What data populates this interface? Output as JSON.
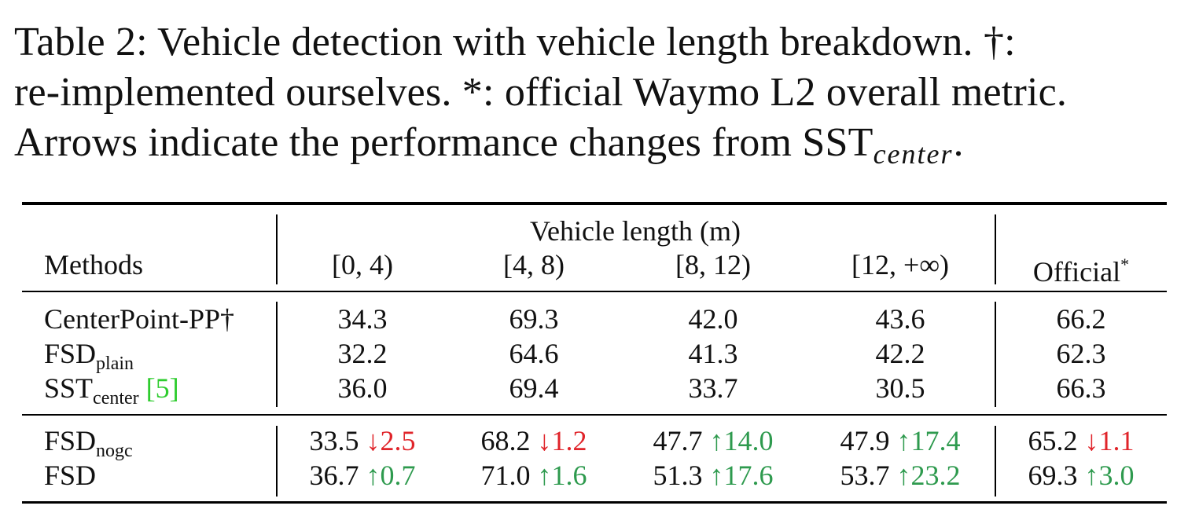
{
  "caption": {
    "line1": "Table 2:  Vehicle detection with vehicle length breakdown.  †:",
    "line2": "re-implemented ourselves. *: official Waymo L2 overall metric.",
    "line3_text": "Arrows indicate the performance changes from SST",
    "line3_sub": "center",
    "line3_end": "."
  },
  "table": {
    "group_header": "Vehicle length (m)",
    "columns": {
      "methods": "Methods",
      "c1": "[0, 4)",
      "c2": "[4, 8)",
      "c3": "[8, 12)",
      "c4": "[12, +∞)",
      "official": "Official",
      "official_mark": "*"
    },
    "rows": [
      {
        "method": "CenterPoint-PP†",
        "method_sub": "",
        "ref": "",
        "values": [
          "34.3",
          "69.3",
          "42.0",
          "43.6",
          "66.2"
        ]
      },
      {
        "method": "FSD",
        "method_sub": "plain",
        "ref": "",
        "values": [
          "32.2",
          "64.6",
          "41.3",
          "42.2",
          "62.3"
        ]
      },
      {
        "method": "SST",
        "method_sub": "center",
        "ref": "[5]",
        "values": [
          "36.0",
          "69.4",
          "33.7",
          "30.5",
          "66.3"
        ]
      },
      {
        "method": "FSD",
        "method_sub": "nogc",
        "values": [
          "33.5",
          "68.2",
          "47.7",
          "47.9",
          "65.2"
        ],
        "deltas": [
          {
            "arrow": "↓",
            "value": "2.5",
            "dir": "down"
          },
          {
            "arrow": "↓",
            "value": "1.2",
            "dir": "down"
          },
          {
            "arrow": "↑",
            "value": "14.0",
            "dir": "up"
          },
          {
            "arrow": "↑",
            "value": "17.4",
            "dir": "up"
          },
          {
            "arrow": "↓",
            "value": "1.1",
            "dir": "down"
          }
        ]
      },
      {
        "method": "FSD",
        "method_sub": "",
        "values": [
          "36.7",
          "71.0",
          "51.3",
          "53.7",
          "69.3"
        ],
        "deltas": [
          {
            "arrow": "↑",
            "value": "0.7",
            "dir": "up"
          },
          {
            "arrow": "↑",
            "value": "1.6",
            "dir": "up"
          },
          {
            "arrow": "↑",
            "value": "17.6",
            "dir": "up"
          },
          {
            "arrow": "↑",
            "value": "23.2",
            "dir": "up"
          },
          {
            "arrow": "↑",
            "value": "3.0",
            "dir": "up"
          }
        ]
      }
    ],
    "colors": {
      "ref": "#2ecc2e",
      "down": "#e0242a",
      "up": "#2e9a4e"
    }
  }
}
